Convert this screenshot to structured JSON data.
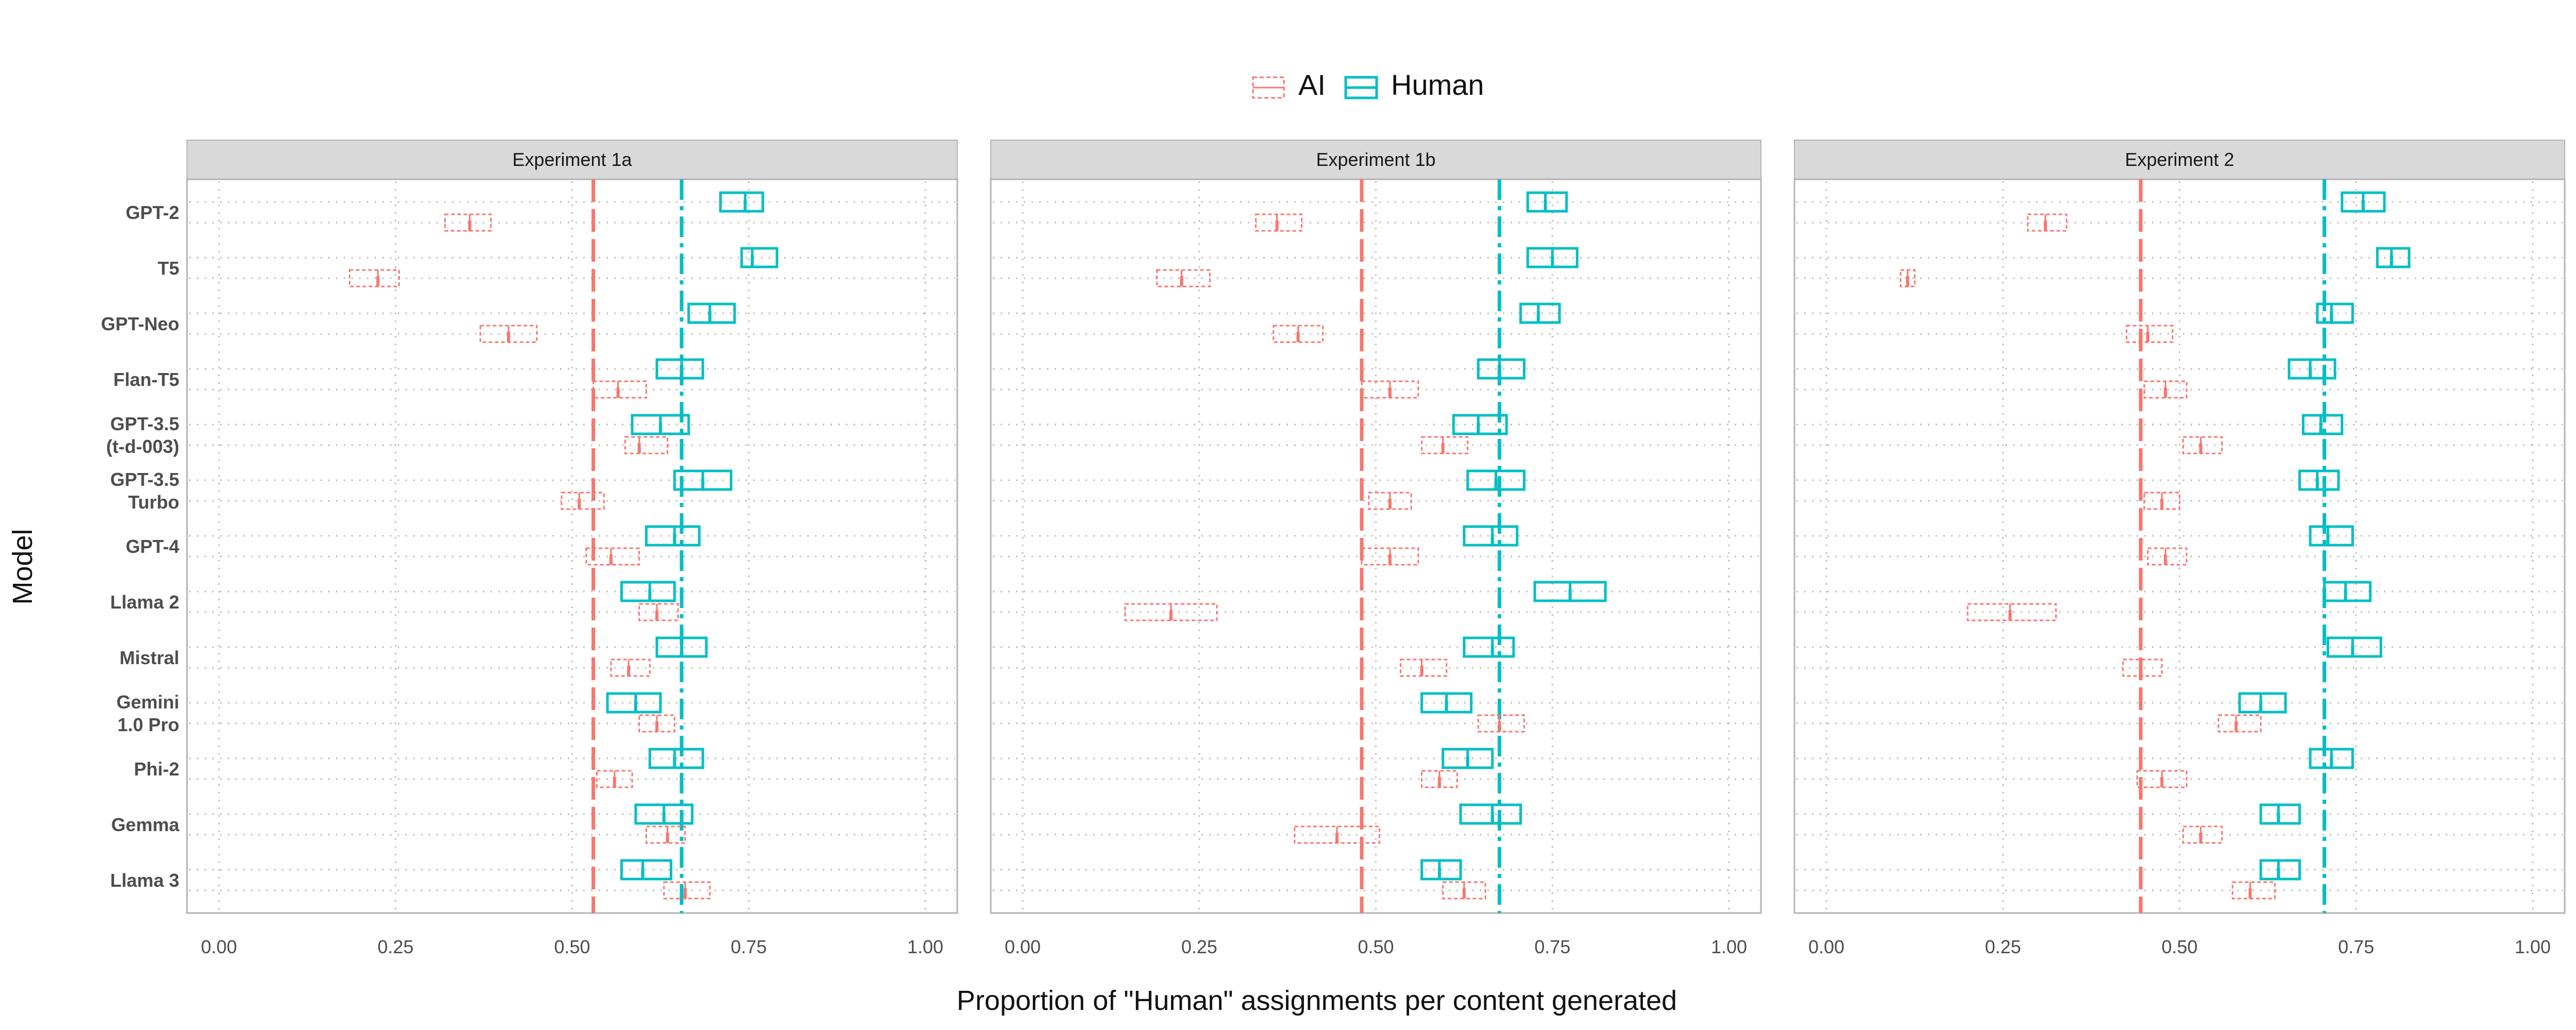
{
  "legend": {
    "items": [
      {
        "label": "AI",
        "color": "#F8766D",
        "style": "dashed"
      },
      {
        "label": "Human",
        "color": "#00BFC4",
        "style": "solid"
      }
    ]
  },
  "chart_data": {
    "type": "boxplot",
    "xlabel": "Proportion of \"Human\" assignments per content generated",
    "ylabel": "Model",
    "xlim": [
      0,
      1
    ],
    "xticks": [
      "0.00",
      "0.25",
      "0.50",
      "0.75",
      "1.00"
    ],
    "xtick_values": [
      0,
      0.25,
      0.5,
      0.75,
      1.0
    ],
    "grid": true,
    "legend_position": "top",
    "categories": [
      "GPT-2",
      "T5",
      "GPT-Neo",
      "Flan-T5",
      "GPT-3.5\n(t-d-003)",
      "GPT-3.5\nTurbo",
      "GPT-4",
      "Llama 2",
      "Mistral",
      "Gemini\n1.0 Pro",
      "Phi-2",
      "Gemma",
      "Llama 3"
    ],
    "colors": {
      "AI": "#F8766D",
      "Human": "#00BFC4"
    },
    "panels": [
      {
        "title": "Experiment 1a",
        "means": {
          "AI": 0.53,
          "Human": 0.655
        },
        "series": {
          "AI": [
            {
              "q1": 0.32,
              "median": 0.355,
              "q3": 0.385
            },
            {
              "q1": 0.185,
              "median": 0.225,
              "q3": 0.255
            },
            {
              "q1": 0.37,
              "median": 0.41,
              "q3": 0.45
            },
            {
              "q1": 0.53,
              "median": 0.565,
              "q3": 0.605
            },
            {
              "q1": 0.575,
              "median": 0.595,
              "q3": 0.635
            },
            {
              "q1": 0.485,
              "median": 0.51,
              "q3": 0.545
            },
            {
              "q1": 0.52,
              "median": 0.555,
              "q3": 0.595
            },
            {
              "q1": 0.595,
              "median": 0.62,
              "q3": 0.65
            },
            {
              "q1": 0.555,
              "median": 0.58,
              "q3": 0.61
            },
            {
              "q1": 0.595,
              "median": 0.62,
              "q3": 0.645
            },
            {
              "q1": 0.535,
              "median": 0.56,
              "q3": 0.585
            },
            {
              "q1": 0.605,
              "median": 0.635,
              "q3": 0.66
            },
            {
              "q1": 0.63,
              "median": 0.66,
              "q3": 0.695
            }
          ],
          "Human": [
            {
              "q1": 0.71,
              "median": 0.745,
              "q3": 0.77
            },
            {
              "q1": 0.74,
              "median": 0.755,
              "q3": 0.79
            },
            {
              "q1": 0.665,
              "median": 0.695,
              "q3": 0.73
            },
            {
              "q1": 0.62,
              "median": 0.655,
              "q3": 0.685
            },
            {
              "q1": 0.585,
              "median": 0.625,
              "q3": 0.665
            },
            {
              "q1": 0.645,
              "median": 0.685,
              "q3": 0.725
            },
            {
              "q1": 0.605,
              "median": 0.645,
              "q3": 0.68
            },
            {
              "q1": 0.57,
              "median": 0.61,
              "q3": 0.645
            },
            {
              "q1": 0.62,
              "median": 0.655,
              "q3": 0.69
            },
            {
              "q1": 0.55,
              "median": 0.59,
              "q3": 0.625
            },
            {
              "q1": 0.61,
              "median": 0.645,
              "q3": 0.685
            },
            {
              "q1": 0.59,
              "median": 0.63,
              "q3": 0.67
            },
            {
              "q1": 0.57,
              "median": 0.6,
              "q3": 0.64
            }
          ]
        }
      },
      {
        "title": "Experiment 1b",
        "means": {
          "AI": 0.48,
          "Human": 0.675
        },
        "series": {
          "AI": [
            {
              "q1": 0.33,
              "median": 0.36,
              "q3": 0.395
            },
            {
              "q1": 0.19,
              "median": 0.225,
              "q3": 0.265
            },
            {
              "q1": 0.355,
              "median": 0.39,
              "q3": 0.425
            },
            {
              "q1": 0.48,
              "median": 0.52,
              "q3": 0.56
            },
            {
              "q1": 0.565,
              "median": 0.595,
              "q3": 0.63
            },
            {
              "q1": 0.49,
              "median": 0.52,
              "q3": 0.55
            },
            {
              "q1": 0.48,
              "median": 0.52,
              "q3": 0.56
            },
            {
              "q1": 0.145,
              "median": 0.21,
              "q3": 0.275
            },
            {
              "q1": 0.535,
              "median": 0.565,
              "q3": 0.6
            },
            {
              "q1": 0.645,
              "median": 0.675,
              "q3": 0.71
            },
            {
              "q1": 0.565,
              "median": 0.59,
              "q3": 0.615
            },
            {
              "q1": 0.385,
              "median": 0.445,
              "q3": 0.505
            },
            {
              "q1": 0.595,
              "median": 0.625,
              "q3": 0.655
            }
          ],
          "Human": [
            {
              "q1": 0.715,
              "median": 0.74,
              "q3": 0.77
            },
            {
              "q1": 0.715,
              "median": 0.75,
              "q3": 0.785
            },
            {
              "q1": 0.705,
              "median": 0.73,
              "q3": 0.76
            },
            {
              "q1": 0.645,
              "median": 0.675,
              "q3": 0.71
            },
            {
              "q1": 0.61,
              "median": 0.645,
              "q3": 0.685
            },
            {
              "q1": 0.63,
              "median": 0.67,
              "q3": 0.71
            },
            {
              "q1": 0.625,
              "median": 0.665,
              "q3": 0.7
            },
            {
              "q1": 0.725,
              "median": 0.775,
              "q3": 0.825
            },
            {
              "q1": 0.625,
              "median": 0.665,
              "q3": 0.695
            },
            {
              "q1": 0.565,
              "median": 0.6,
              "q3": 0.635
            },
            {
              "q1": 0.595,
              "median": 0.63,
              "q3": 0.665
            },
            {
              "q1": 0.62,
              "median": 0.665,
              "q3": 0.705
            },
            {
              "q1": 0.565,
              "median": 0.59,
              "q3": 0.62
            }
          ]
        }
      },
      {
        "title": "Experiment 2",
        "means": {
          "AI": 0.445,
          "Human": 0.705
        },
        "series": {
          "AI": [
            {
              "q1": 0.285,
              "median": 0.31,
              "q3": 0.34
            },
            {
              "q1": 0.105,
              "median": 0.115,
              "q3": 0.125
            },
            {
              "q1": 0.425,
              "median": 0.455,
              "q3": 0.49
            },
            {
              "q1": 0.45,
              "median": 0.48,
              "q3": 0.51
            },
            {
              "q1": 0.505,
              "median": 0.53,
              "q3": 0.56
            },
            {
              "q1": 0.45,
              "median": 0.475,
              "q3": 0.5
            },
            {
              "q1": 0.455,
              "median": 0.48,
              "q3": 0.51
            },
            {
              "q1": 0.2,
              "median": 0.26,
              "q3": 0.325
            },
            {
              "q1": 0.42,
              "median": 0.445,
              "q3": 0.475
            },
            {
              "q1": 0.555,
              "median": 0.58,
              "q3": 0.615
            },
            {
              "q1": 0.44,
              "median": 0.475,
              "q3": 0.51
            },
            {
              "q1": 0.505,
              "median": 0.53,
              "q3": 0.56
            },
            {
              "q1": 0.575,
              "median": 0.6,
              "q3": 0.635
            }
          ],
          "Human": [
            {
              "q1": 0.73,
              "median": 0.76,
              "q3": 0.79
            },
            {
              "q1": 0.78,
              "median": 0.8,
              "q3": 0.825
            },
            {
              "q1": 0.695,
              "median": 0.715,
              "q3": 0.745
            },
            {
              "q1": 0.655,
              "median": 0.685,
              "q3": 0.72
            },
            {
              "q1": 0.675,
              "median": 0.7,
              "q3": 0.73
            },
            {
              "q1": 0.67,
              "median": 0.695,
              "q3": 0.725
            },
            {
              "q1": 0.685,
              "median": 0.71,
              "q3": 0.745
            },
            {
              "q1": 0.705,
              "median": 0.735,
              "q3": 0.77
            },
            {
              "q1": 0.71,
              "median": 0.745,
              "q3": 0.785
            },
            {
              "q1": 0.585,
              "median": 0.615,
              "q3": 0.65
            },
            {
              "q1": 0.685,
              "median": 0.715,
              "q3": 0.745
            },
            {
              "q1": 0.615,
              "median": 0.64,
              "q3": 0.67
            },
            {
              "q1": 0.615,
              "median": 0.64,
              "q3": 0.67
            }
          ]
        }
      }
    ]
  }
}
